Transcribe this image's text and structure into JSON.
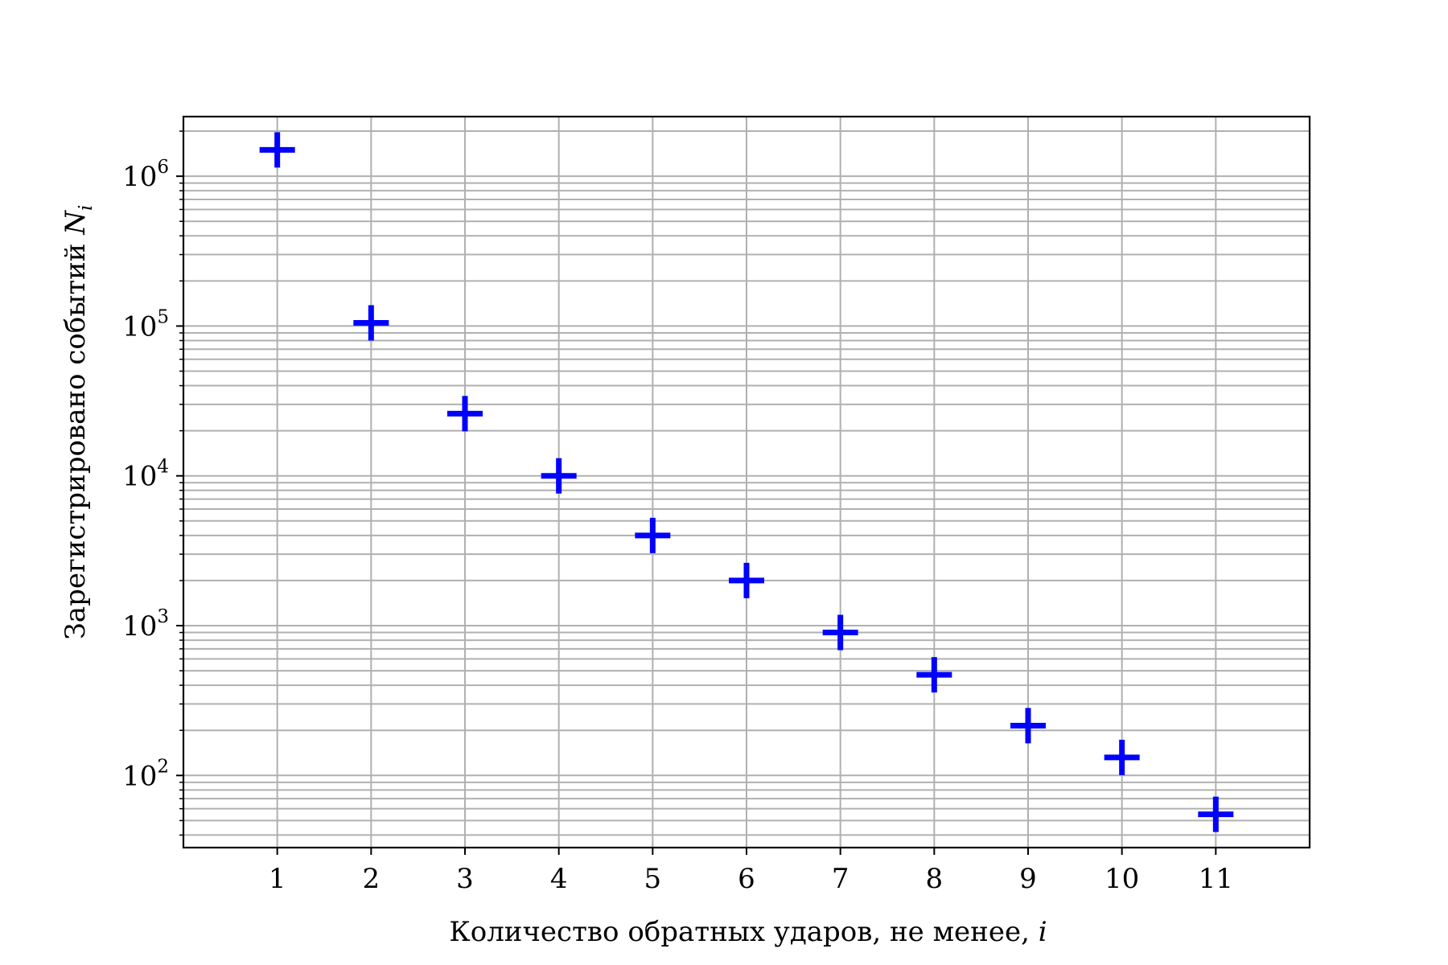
{
  "chart_data": {
    "type": "scatter",
    "title": "",
    "xlabel": "Количество обратных ударов, не менее,",
    "xlabel_var": "i",
    "ylabel": "Зарегистрировано событий",
    "ylabel_var": "N",
    "ylabel_var_sub": "i",
    "y_scale": "log",
    "xlim": [
      0,
      12
    ],
    "ylim": [
      33,
      2500000
    ],
    "x_ticks": [
      1,
      2,
      3,
      4,
      5,
      6,
      7,
      8,
      9,
      10,
      11
    ],
    "y_major_ticks": [
      {
        "base": "10",
        "exp": "2",
        "value": 100
      },
      {
        "base": "10",
        "exp": "3",
        "value": 1000
      },
      {
        "base": "10",
        "exp": "4",
        "value": 10000
      },
      {
        "base": "10",
        "exp": "5",
        "value": 100000
      },
      {
        "base": "10",
        "exp": "6",
        "value": 1000000
      }
    ],
    "grid": true,
    "marker": "plus",
    "marker_color": "#0000ff",
    "grid_color": "#b0b0b0",
    "x": [
      1,
      2,
      3,
      4,
      5,
      6,
      7,
      8,
      9,
      10,
      11
    ],
    "y": [
      1500000,
      105000,
      26000,
      10000,
      4000,
      2000,
      900,
      470,
      215,
      132,
      55
    ]
  }
}
